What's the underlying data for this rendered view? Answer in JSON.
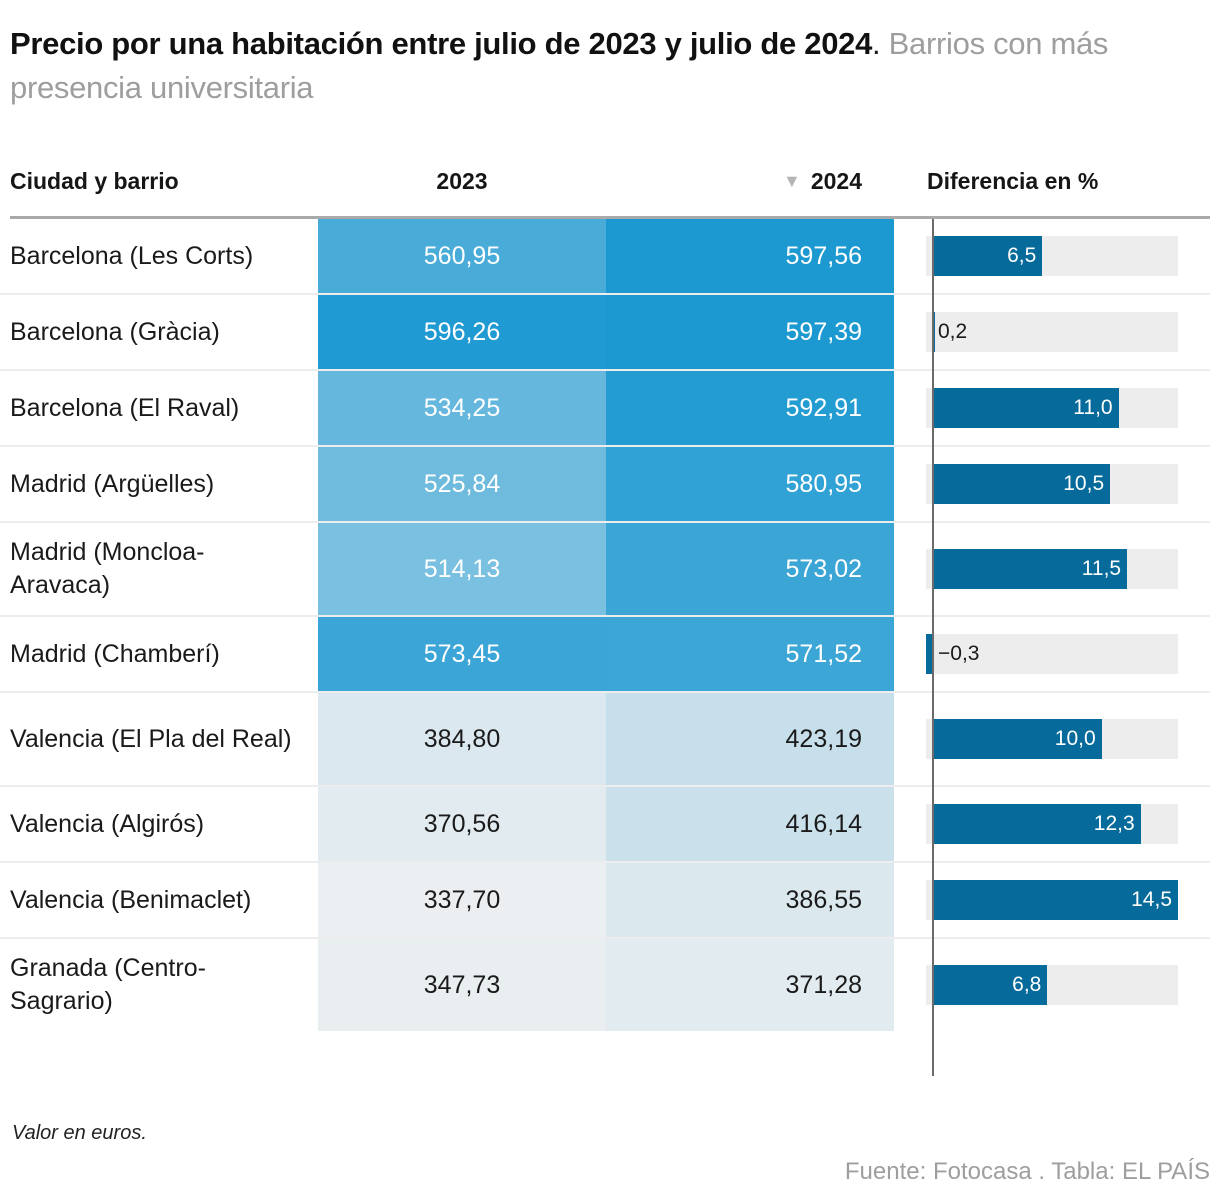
{
  "title": {
    "bold": "Precio por una habitación entre julio de 2023 y julio de 2024",
    "sep": ".",
    "subtitle": " Barrios con más presencia universitaria"
  },
  "columns": {
    "city": "Ciudad y barrio",
    "y2023": "2023",
    "y2024": "2024",
    "sort_icon": "▼",
    "diff": "Diferencia en %"
  },
  "footer": {
    "note": "Valor en euros.",
    "source": "Fuente: Fotocasa . Tabla: EL PAÍS"
  },
  "chart_data": {
    "type": "table",
    "title": "Precio por una habitación entre julio de 2023 y julio de 2024. Barrios con más presencia universitaria",
    "unit": "euros",
    "sorted_by": "2024 descending",
    "columns": [
      "Ciudad y barrio",
      "2023",
      "2024",
      "Diferencia en %"
    ],
    "diff_range": [
      -0.3,
      14.5
    ],
    "rows": [
      {
        "city": "Barcelona (Les Corts)",
        "y2023": "560,95",
        "y2024": "597,56",
        "diff": 6.5,
        "diff_label": "6,5",
        "v2023": 560.95,
        "v2024": 597.56,
        "tall": false
      },
      {
        "city": "Barcelona (Gràcia)",
        "y2023": "596,26",
        "y2024": "597,39",
        "diff": 0.2,
        "diff_label": "0,2",
        "v2023": 596.26,
        "v2024": 597.39,
        "tall": false
      },
      {
        "city": "Barcelona (El Raval)",
        "y2023": "534,25",
        "y2024": "592,91",
        "diff": 11.0,
        "diff_label": "11,0",
        "v2023": 534.25,
        "v2024": 592.91,
        "tall": false
      },
      {
        "city": "Madrid (Argüelles)",
        "y2023": "525,84",
        "y2024": "580,95",
        "diff": 10.5,
        "diff_label": "10,5",
        "v2023": 525.84,
        "v2024": 580.95,
        "tall": false
      },
      {
        "city": "Madrid (Moncloa-Aravaca)",
        "y2023": "514,13",
        "y2024": "573,02",
        "diff": 11.5,
        "diff_label": "11,5",
        "v2023": 514.13,
        "v2024": 573.02,
        "tall": true
      },
      {
        "city": "Madrid (Chamberí)",
        "y2023": "573,45",
        "y2024": "571,52",
        "diff": -0.3,
        "diff_label": "−0,3",
        "v2023": 573.45,
        "v2024": 571.52,
        "tall": false
      },
      {
        "city": "Valencia (El Pla del Real)",
        "y2023": "384,80",
        "y2024": "423,19",
        "diff": 10.0,
        "diff_label": "10,0",
        "v2023": 384.8,
        "v2024": 423.19,
        "tall": true
      },
      {
        "city": "Valencia (Algirós)",
        "y2023": "370,56",
        "y2024": "416,14",
        "diff": 12.3,
        "diff_label": "12,3",
        "v2023": 370.56,
        "v2024": 416.14,
        "tall": false
      },
      {
        "city": "Valencia (Benimaclet)",
        "y2023": "337,70",
        "y2024": "386,55",
        "diff": 14.5,
        "diff_label": "14,5",
        "v2023": 337.7,
        "v2024": 386.55,
        "tall": false
      },
      {
        "city": "Granada (Centro-Sagrario)",
        "y2023": "347,73",
        "y2024": "371,28",
        "diff": 6.8,
        "diff_label": "6,8",
        "v2023": 347.73,
        "v2024": 371.28,
        "tall": true
      }
    ]
  },
  "colors": {
    "bar": "#066a9b",
    "track": "#ededed",
    "heat_low": "#eceff1",
    "heat_high": "#1a98d1"
  }
}
